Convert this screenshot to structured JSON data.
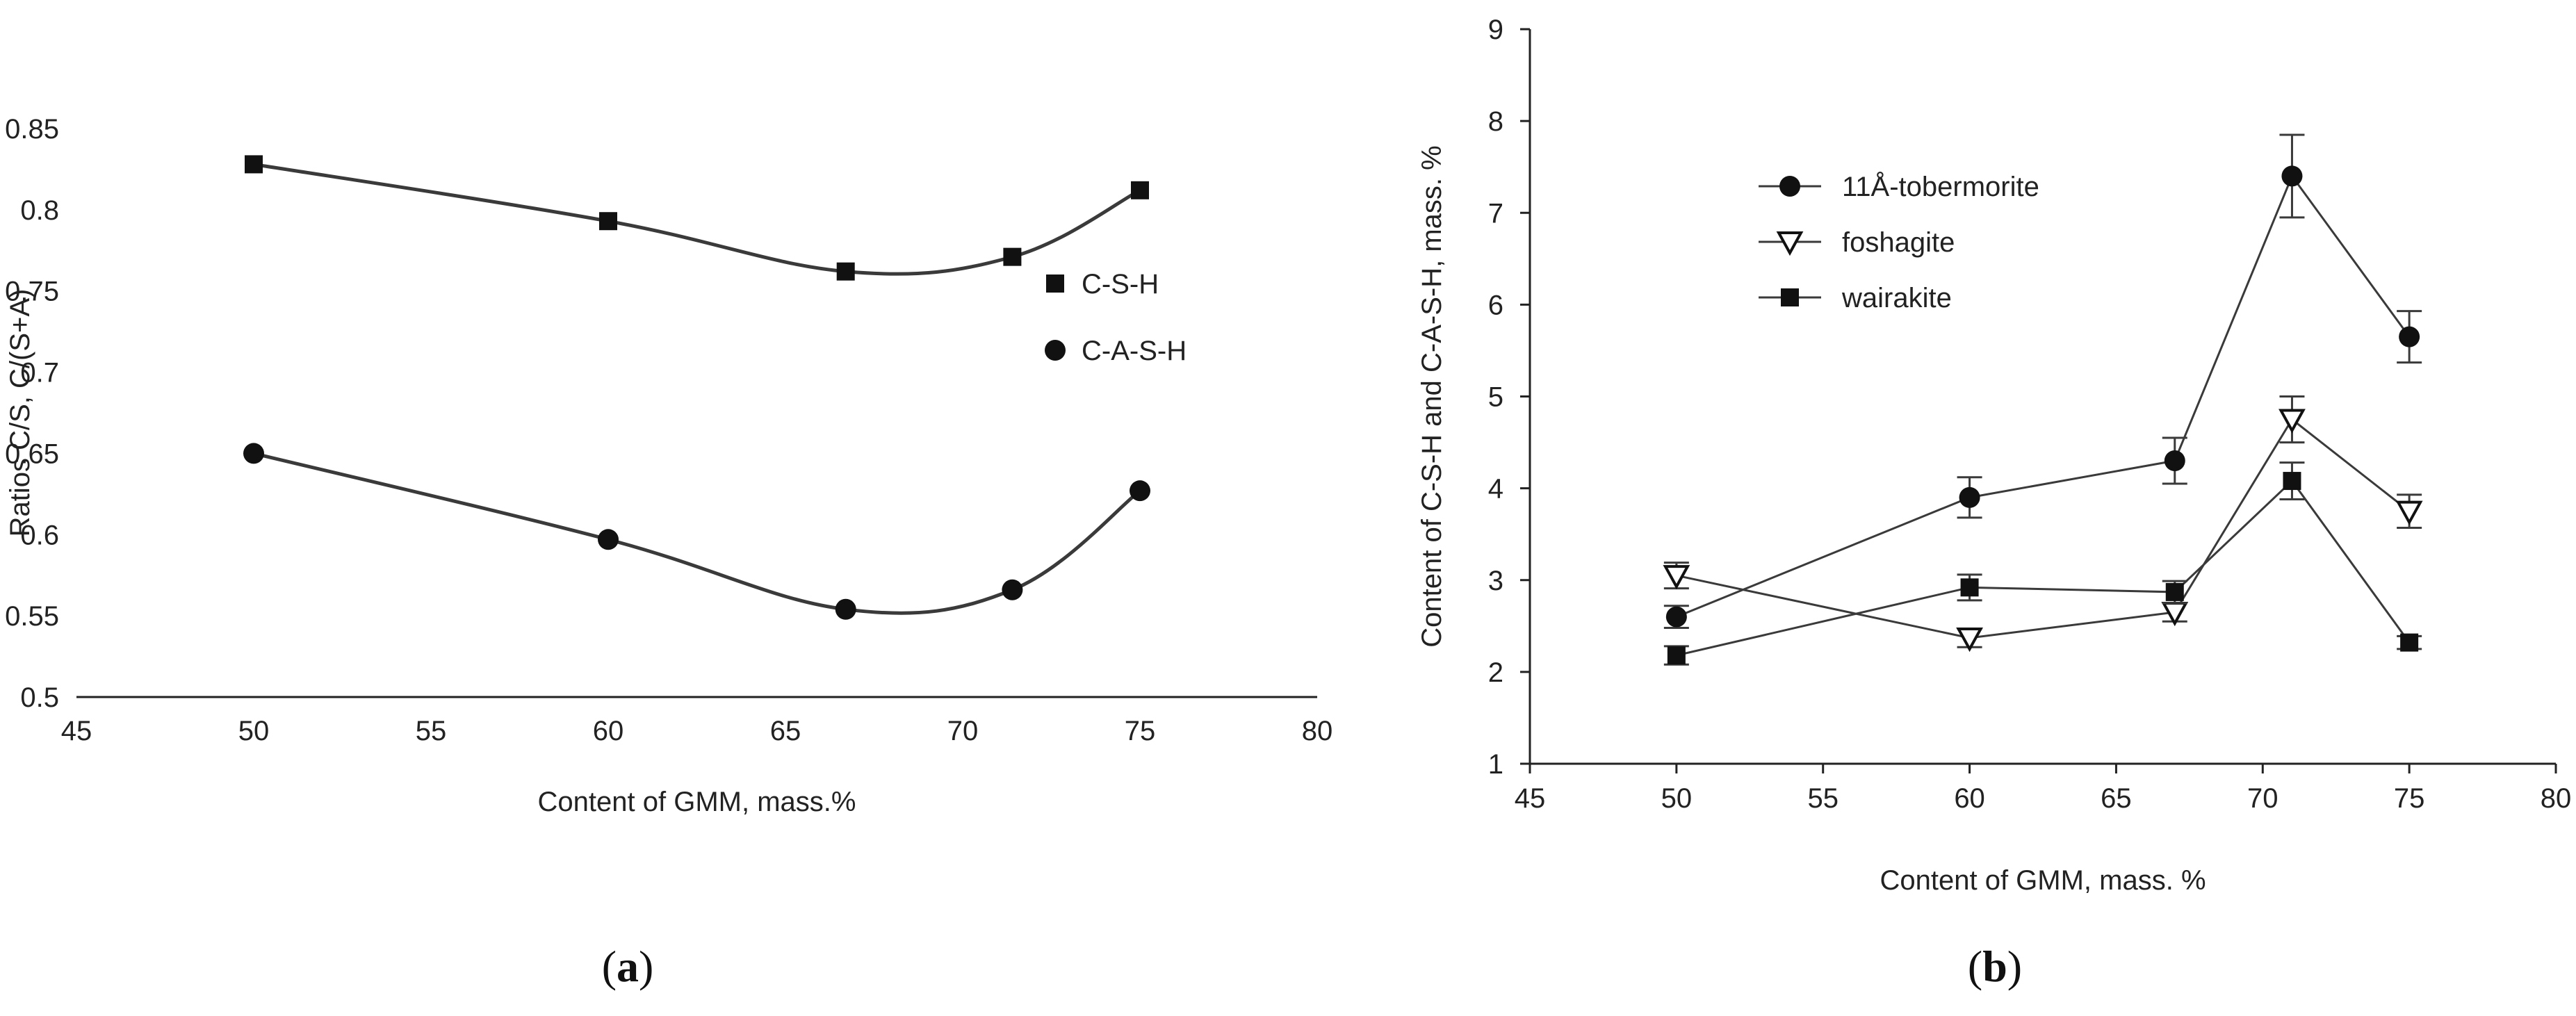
{
  "colors": {
    "line": "#3a3a3a",
    "marker": "#111111",
    "axis": "#222222",
    "text": "#222222"
  },
  "chart_data": [
    {
      "type": "line",
      "panel_label": "a",
      "xlabel": "Content of GMM, mass.%",
      "ylabel": "Ratios C/S, C/(S+A)",
      "xlim": [
        45,
        80
      ],
      "ylim": [
        0.5,
        0.85
      ],
      "xticks": [
        45,
        50,
        55,
        60,
        65,
        70,
        75,
        80
      ],
      "yticks": [
        0.5,
        0.55,
        0.6,
        0.65,
        0.7,
        0.75,
        0.8,
        0.85
      ],
      "ytick_labels": [
        "0.5",
        "0.55",
        "0.6",
        "0.65",
        "0.7",
        "0.75",
        "0.8",
        "0.85"
      ],
      "grid": false,
      "smooth": true,
      "legend_position": "right",
      "series": [
        {
          "name": "C-S-H",
          "marker": "square",
          "x": [
            50,
            60,
            66.7,
            71.4,
            75
          ],
          "y": [
            0.828,
            0.793,
            0.762,
            0.771,
            0.812
          ]
        },
        {
          "name": "C-A-S-H",
          "marker": "circle",
          "x": [
            50,
            60,
            66.7,
            71.4,
            75
          ],
          "y": [
            0.65,
            0.597,
            0.554,
            0.566,
            0.627
          ]
        }
      ]
    },
    {
      "type": "line",
      "panel_label": "b",
      "xlabel": "Content of GMM, mass. %",
      "ylabel": "Content of C-S-H and C-A-S-H, mass. %",
      "xlim": [
        45,
        80
      ],
      "ylim": [
        1,
        9
      ],
      "xticks": [
        45,
        50,
        55,
        60,
        65,
        70,
        75,
        80
      ],
      "yticks": [
        1,
        2,
        3,
        4,
        5,
        6,
        7,
        8,
        9
      ],
      "ytick_labels": [
        "1",
        "2",
        "3",
        "4",
        "5",
        "6",
        "7",
        "8",
        "9"
      ],
      "grid": false,
      "smooth": false,
      "legend_position": "top-left",
      "series": [
        {
          "name": "11Å-tobermorite",
          "marker": "circle",
          "x": [
            50,
            60,
            67,
            71,
            75
          ],
          "y": [
            2.6,
            3.9,
            4.3,
            7.4,
            5.65
          ],
          "err": [
            0.12,
            0.22,
            0.25,
            0.45,
            0.28
          ]
        },
        {
          "name": "foshagite",
          "marker": "triangle-down",
          "x": [
            50,
            60,
            67,
            71,
            75
          ],
          "y": [
            3.05,
            2.37,
            2.65,
            4.75,
            3.75
          ],
          "err": [
            0.14,
            0.1,
            0.1,
            0.25,
            0.18
          ]
        },
        {
          "name": "wairakite",
          "marker": "square",
          "x": [
            50,
            60,
            67,
            71,
            75
          ],
          "y": [
            2.18,
            2.92,
            2.87,
            4.08,
            2.32
          ],
          "err": [
            0.1,
            0.14,
            0.12,
            0.2,
            0.07
          ]
        }
      ]
    }
  ]
}
